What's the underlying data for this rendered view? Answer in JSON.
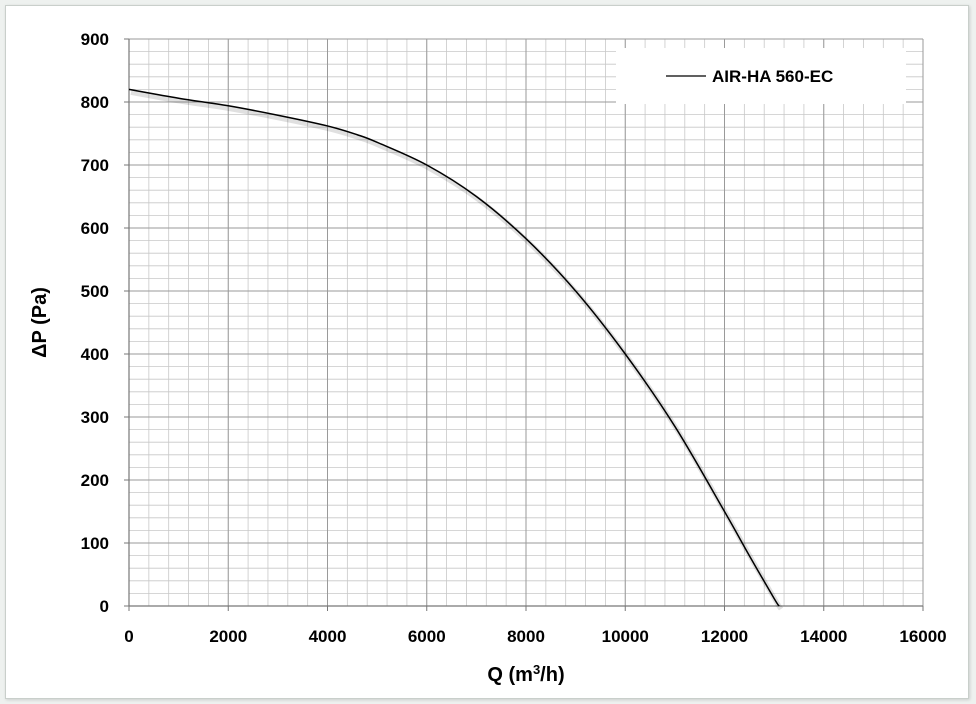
{
  "chart_data": {
    "type": "line",
    "xlabel_base": "Q (m",
    "xlabel_sup": "3",
    "xlabel_tail": "/h)",
    "ylabel": "ΔP (Pa)",
    "xlim": [
      0,
      16000
    ],
    "ylim": [
      0,
      900
    ],
    "x_major_ticks": [
      0,
      2000,
      4000,
      6000,
      8000,
      10000,
      12000,
      14000,
      16000
    ],
    "y_major_ticks": [
      0,
      100,
      200,
      300,
      400,
      500,
      600,
      700,
      800,
      900
    ],
    "x_minor_step": 400,
    "y_minor_step": 20,
    "grid": true,
    "legend_position": "top-right",
    "line_color": "#000000",
    "grid_color": "#c8c8c8",
    "series": [
      {
        "name": "AIR-HA 560-EC",
        "x": [
          0,
          1000,
          2000,
          3000,
          4000,
          4600,
          5000,
          6000,
          7000,
          8000,
          9000,
          10000,
          11000,
          12000,
          12500,
          13000,
          13100
        ],
        "y": [
          820,
          806,
          794,
          779,
          762,
          748,
          736,
          700,
          650,
          583,
          500,
          400,
          285,
          150,
          80,
          12,
          0
        ]
      }
    ]
  }
}
